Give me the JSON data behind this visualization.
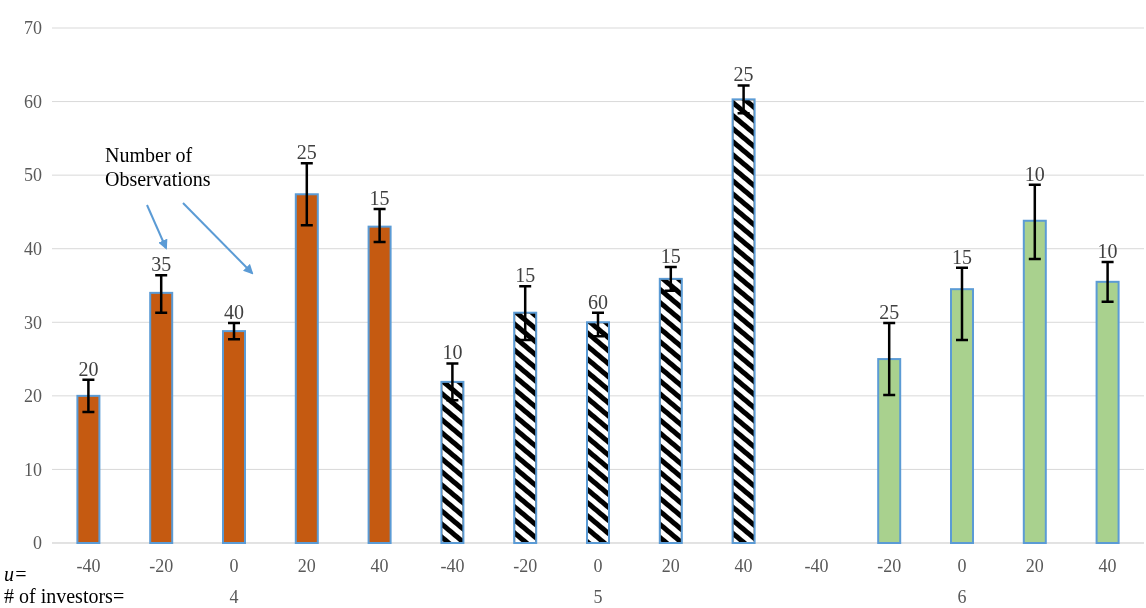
{
  "chart_data": {
    "type": "bar",
    "categories": [
      "-40",
      "-20",
      "0",
      "20",
      "40",
      "-40",
      "-20",
      "0",
      "20",
      "40",
      "-40",
      "-20",
      "0",
      "20",
      "40"
    ],
    "values": [
      20,
      34,
      28.8,
      47.4,
      43,
      21.9,
      31.3,
      30,
      35.9,
      60.3,
      null,
      25,
      34.5,
      43.8,
      35.5
    ],
    "colors": [
      "#c55a11",
      "#c55a11",
      "#c55a11",
      "#c55a11",
      "#c55a11",
      "#000000",
      "#000000",
      "#000000",
      "#000000",
      "#000000",
      null,
      "#a9d18e",
      "#a9d18e",
      "#a9d18e",
      "#a9d18e"
    ],
    "errors": [
      [
        17.8,
        22.2
      ],
      [
        31.3,
        36.4
      ],
      [
        27.7,
        29.9
      ],
      [
        43.2,
        51.6
      ],
      [
        40.9,
        45.4
      ],
      [
        19.4,
        24.4
      ],
      [
        27.6,
        34.9
      ],
      [
        28.1,
        31.3
      ],
      [
        34.3,
        37.5
      ],
      [
        58.4,
        62.2
      ],
      null,
      [
        20.1,
        29.9
      ],
      [
        27.6,
        37.4
      ],
      [
        38.6,
        48.7
      ],
      [
        32.8,
        38.2
      ]
    ],
    "ylim": [
      0,
      70
    ],
    "yticks": [
      0,
      10,
      20,
      30,
      40,
      50,
      60,
      70
    ],
    "grid": "y",
    "annotations": [
      "u=",
      "# of investors=",
      "4",
      "5",
      "6",
      "Number of Observations",
      "20",
      "35",
      "40",
      "25",
      "15",
      "10",
      "15",
      "60",
      "15",
      "25",
      "25",
      "15",
      "10",
      "10"
    ]
  }
}
